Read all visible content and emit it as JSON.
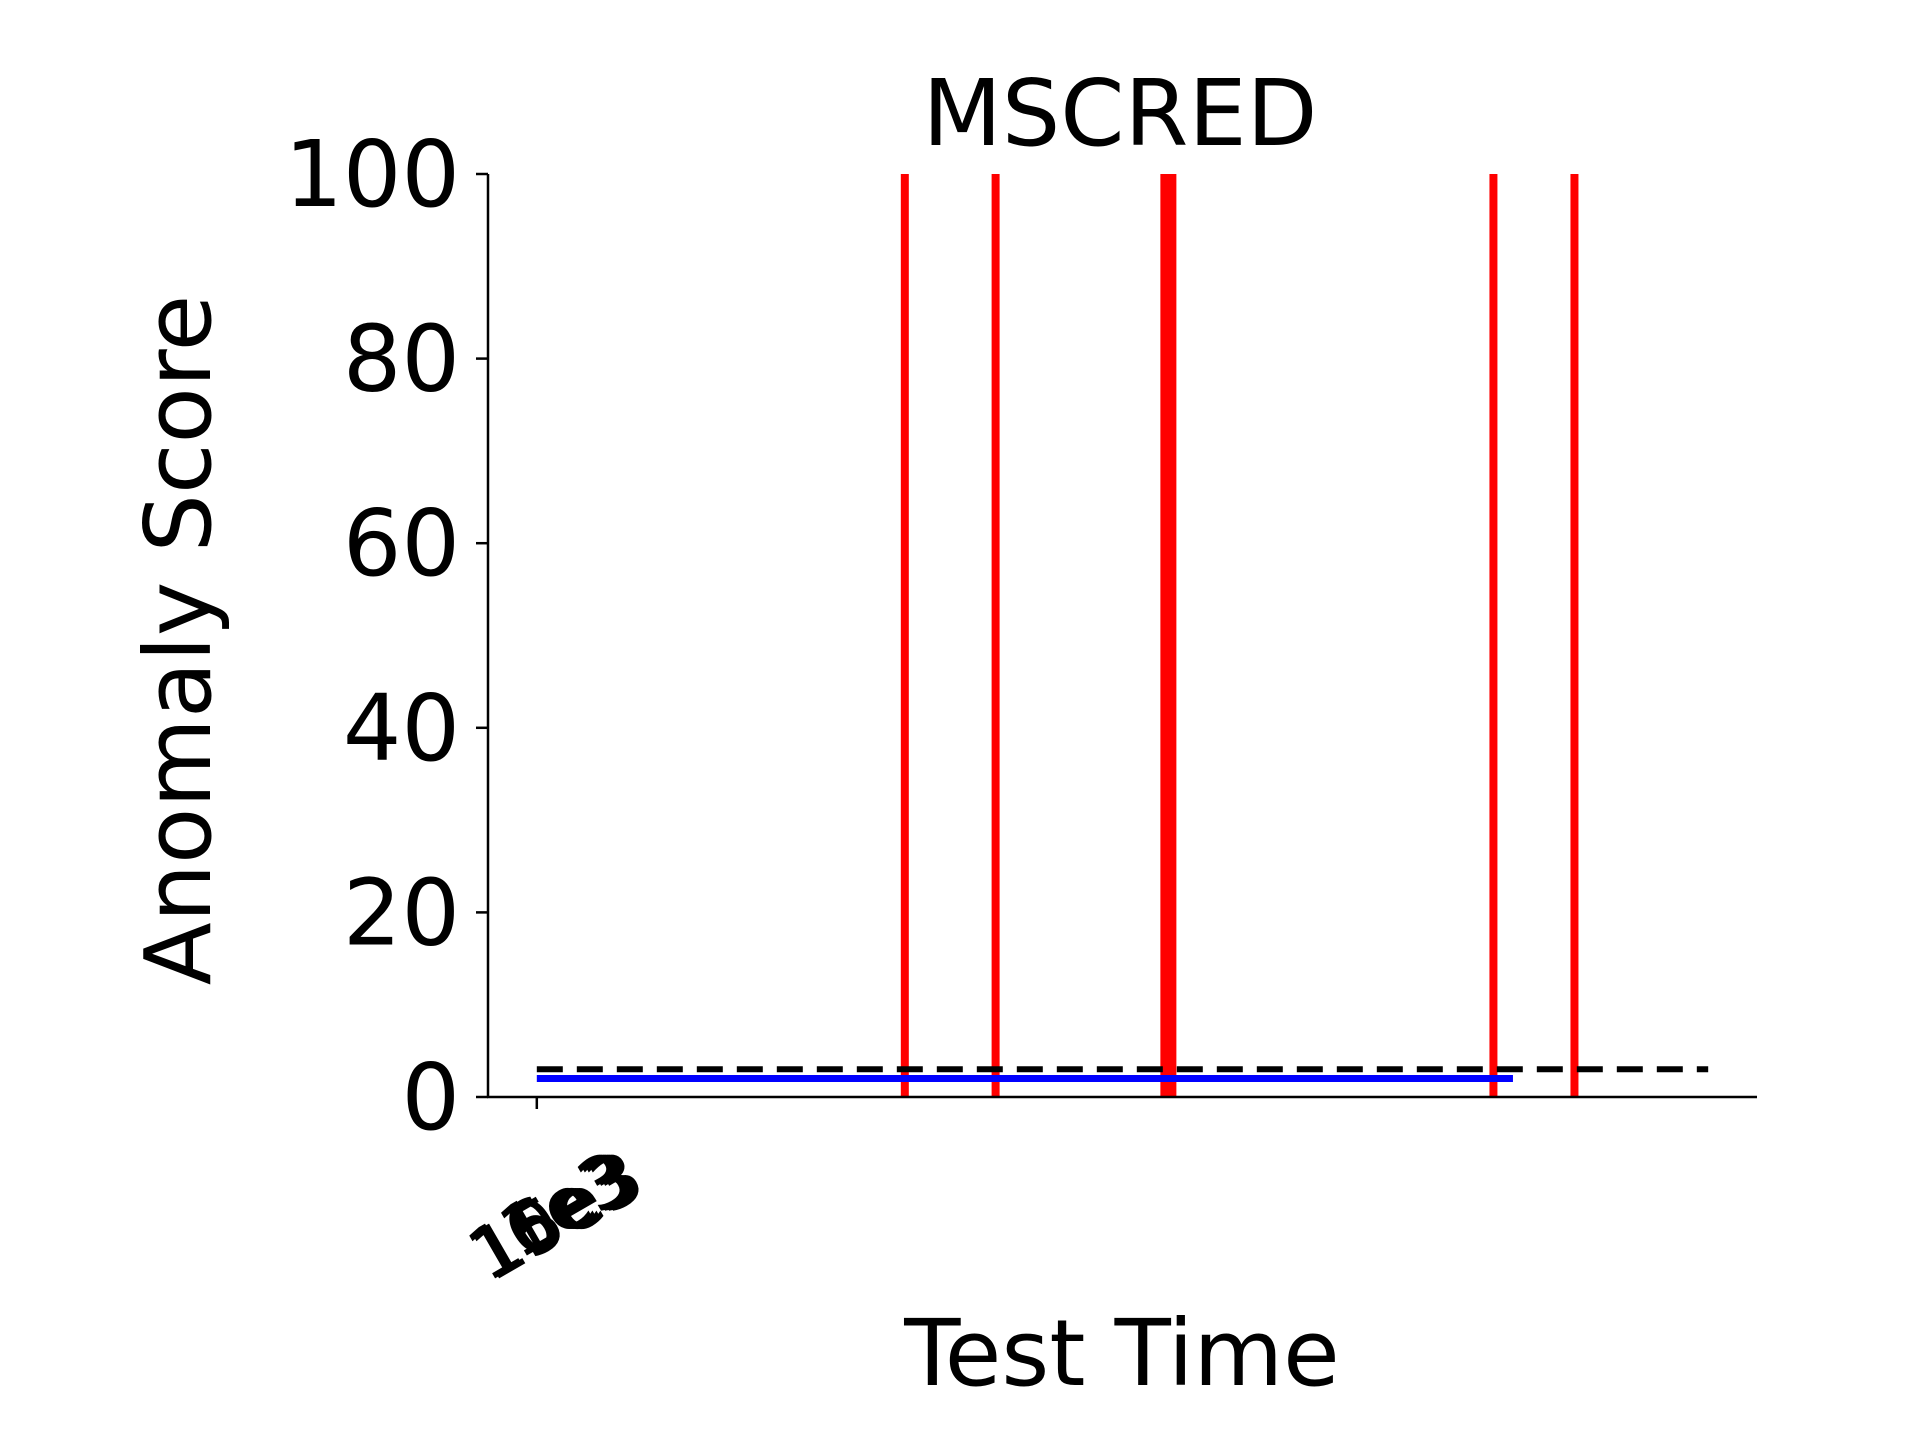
{
  "chart_data": {
    "type": "line",
    "title": "MSCRED",
    "xlabel": "Test Time",
    "ylabel": "Anomaly Score",
    "ylim": [
      0,
      100
    ],
    "xlim": [
      -0.05,
      1.25
    ],
    "y_ticks": [
      0,
      20,
      40,
      60,
      80,
      100
    ],
    "x_tick_labels": [
      "1e3",
      "6e3",
      "10e3",
      "15e3"
    ],
    "grid": false,
    "legend": "none",
    "series": [
      {
        "kind": "score",
        "color": "#0000ff",
        "x": [
          0.0,
          1.0
        ],
        "y": [
          2.0,
          2.0
        ]
      },
      {
        "kind": "threshold",
        "color": "#000000",
        "style": "dashed",
        "x": [
          0.0,
          1.2
        ],
        "y": [
          3.0,
          3.0
        ]
      }
    ],
    "anomaly_markers": {
      "color": "#ff0000",
      "x": [
        0.377,
        0.47,
        0.647,
        0.98,
        1.063
      ],
      "heavy": [
        false,
        false,
        true,
        false,
        false
      ]
    }
  }
}
